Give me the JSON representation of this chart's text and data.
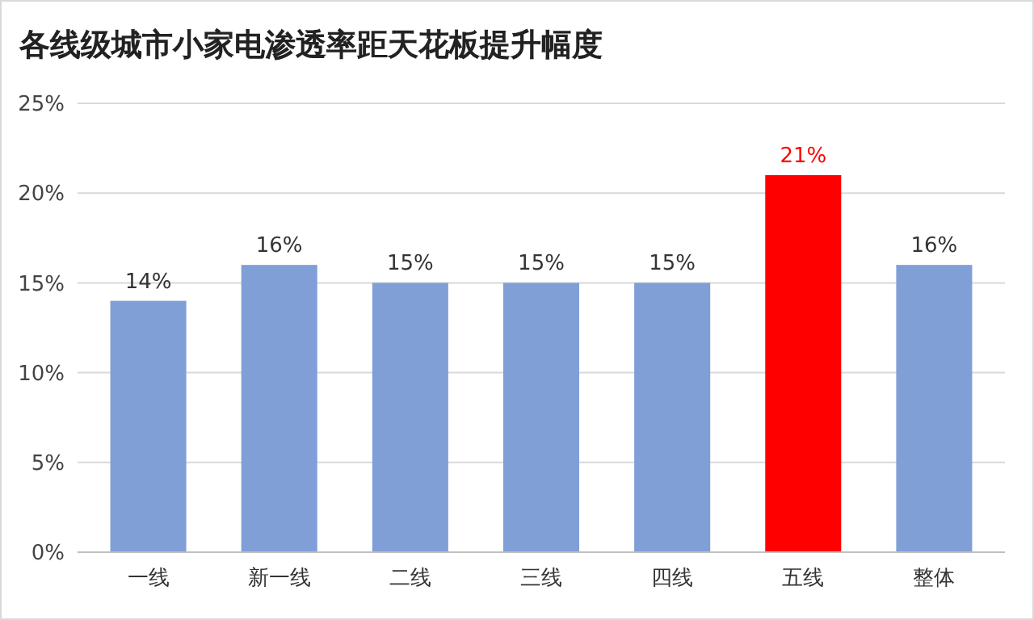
{
  "chart_data": {
    "type": "bar",
    "title": "各线级城市小家电渗透率距天花板提升幅度",
    "categories": [
      "一线",
      "新一线",
      "二线",
      "三线",
      "四线",
      "五线",
      "整体"
    ],
    "values": [
      14,
      16,
      15,
      15,
      15,
      21,
      16
    ],
    "colors": [
      "#7f9fd6",
      "#7f9fd6",
      "#7f9fd6",
      "#7f9fd6",
      "#7f9fd6",
      "#ff0000",
      "#7f9fd6"
    ],
    "value_labels": [
      "14%",
      "16%",
      "15%",
      "15%",
      "15%",
      "21%",
      "16%"
    ],
    "ylim": [
      0,
      25
    ],
    "yticks": [
      {
        "value": 0,
        "label": "0%"
      },
      {
        "value": 5,
        "label": "5%"
      },
      {
        "value": 10,
        "label": "10%"
      },
      {
        "value": 15,
        "label": "15%"
      },
      {
        "value": 20,
        "label": "20%"
      },
      {
        "value": 25,
        "label": "25%"
      }
    ],
    "grid": "y"
  }
}
